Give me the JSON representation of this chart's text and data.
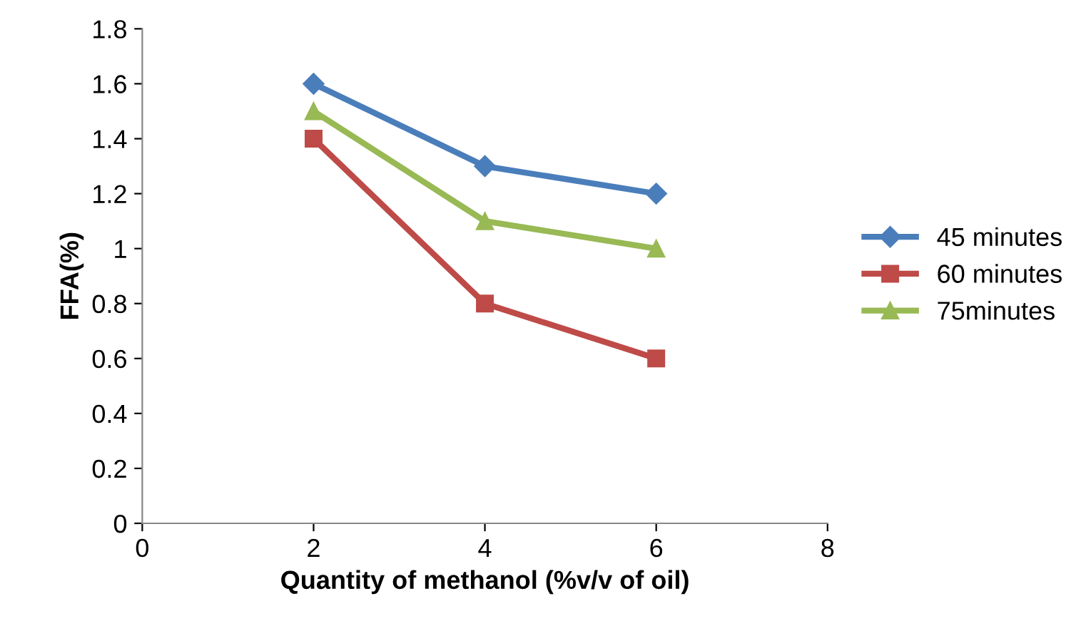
{
  "chart_data": {
    "type": "line",
    "xlabel": "Quantity of methanol (%v/v of oil)",
    "ylabel": "FFA(%)",
    "x": [
      2,
      4,
      6
    ],
    "series": [
      {
        "name": "45 minutes",
        "color": "#4a7ebb",
        "marker": "diamond",
        "values": [
          1.6,
          1.3,
          1.2
        ]
      },
      {
        "name": "60 minutes",
        "color": "#be4b48",
        "marker": "square",
        "values": [
          1.4,
          0.8,
          0.6
        ]
      },
      {
        "name": "75minutes",
        "color": "#98b954",
        "marker": "triangle",
        "values": [
          1.5,
          1.1,
          1
        ]
      }
    ],
    "xlim": [
      0,
      8
    ],
    "xticks": [
      0,
      2,
      4,
      6,
      8
    ],
    "ylim": [
      0,
      1.8
    ],
    "yticks": [
      0,
      0.2,
      0.4,
      0.6,
      0.8,
      1,
      1.2,
      1.4,
      1.6,
      1.8
    ],
    "grid": false,
    "legend": "right",
    "line_style": "solid"
  }
}
